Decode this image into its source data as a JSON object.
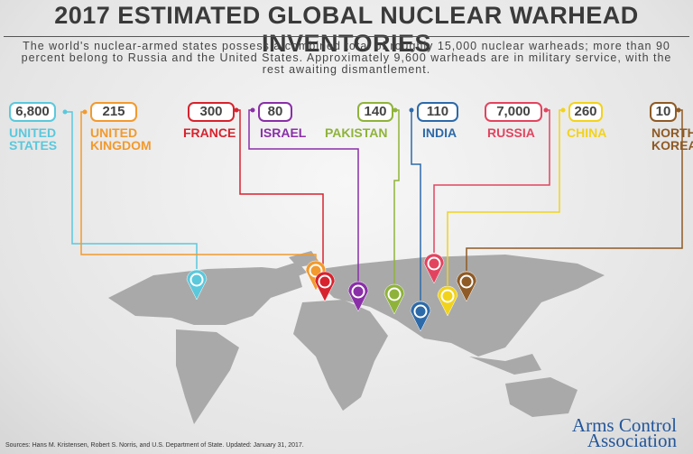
{
  "title": "2017 ESTIMATED GLOBAL NUCLEAR WARHEAD INVENTORIES",
  "subtitle": "The world's nuclear-armed states possess a combined total of roughly 15,000 nuclear warheads; more than 90 percent belong to Russia and the United States. Approximately 9,600 warheads are in military service, with the rest awaiting dismantlement.",
  "countries": [
    {
      "value": "6,800",
      "name": "UNITED STATES",
      "color": "#5bc8dc"
    },
    {
      "value": "215",
      "name": "UNITED KINGDOM",
      "color": "#f29a2e"
    },
    {
      "value": "300",
      "name": "FRANCE",
      "color": "#d7232e"
    },
    {
      "value": "80",
      "name": "ISRAEL",
      "color": "#8a2fa8"
    },
    {
      "value": "140",
      "name": "PAKISTAN",
      "color": "#8fb33a"
    },
    {
      "value": "110",
      "name": "INDIA",
      "color": "#2d6aa9"
    },
    {
      "value": "7,000",
      "name": "RUSSIA",
      "color": "#e2445f"
    },
    {
      "value": "260",
      "name": "CHINA",
      "color": "#f2d31b"
    },
    {
      "value": "10",
      "name": "NORTH KOREA",
      "color": "#8f5a25"
    }
  ],
  "source": "Sources: Hans M. Kristensen, Robert S. Norris, and U.S. Department of State. Updated: January 31, 2017.",
  "logo": "Arms Control Association"
}
